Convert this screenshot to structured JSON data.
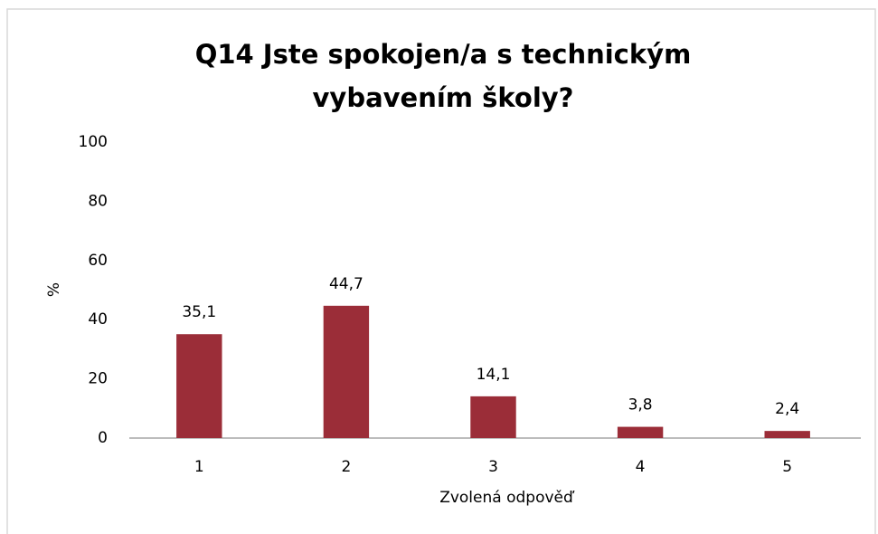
{
  "chart_data": {
    "type": "bar",
    "title": "Q14 Jste spokojen/a s technickým vybavením školy?",
    "categories": [
      "1",
      "2",
      "3",
      "4",
      "5"
    ],
    "values": [
      35.1,
      44.7,
      14.1,
      3.8,
      2.4
    ],
    "value_labels": [
      "35,1",
      "44,7",
      "14,1",
      "3,8",
      "2,4"
    ],
    "color": "#9b2d38",
    "x_label": "Zvolená odpověď",
    "y_label": "%",
    "ylim": [
      0,
      100
    ],
    "yticks": [
      0,
      20,
      40,
      60,
      80,
      100
    ],
    "grid": false
  }
}
